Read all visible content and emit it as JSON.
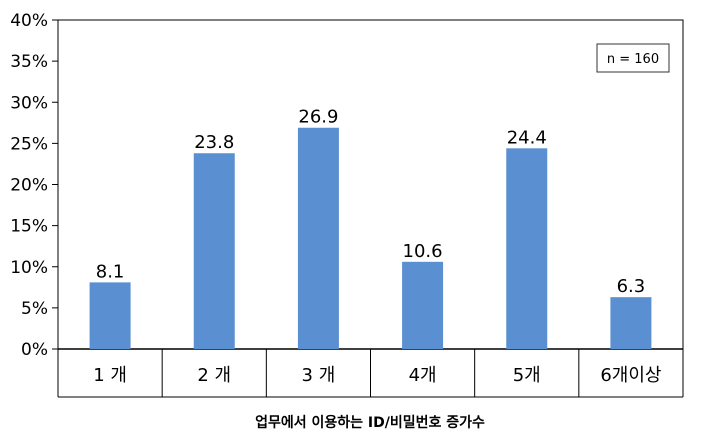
{
  "chart_data": {
    "type": "bar",
    "categories": [
      "1 개",
      "2 개",
      "3 개",
      "4개",
      "5개",
      "6개이상"
    ],
    "values": [
      8.1,
      23.8,
      26.9,
      10.6,
      24.4,
      6.3
    ],
    "value_labels": [
      "8.1",
      "23.8",
      "26.9",
      "10.6",
      "24.4",
      "6.3"
    ],
    "y_ticks": [
      "0%",
      "5%",
      "10%",
      "15%",
      "20%",
      "25%",
      "30%",
      "35%",
      "40%"
    ],
    "ylim": [
      0,
      40
    ],
    "xlabel": "업무에서 이용하는 ID/비밀번호 증가수",
    "ylabel": "",
    "title": "",
    "annotation": "n = 160",
    "bar_color": "#5a8fd1",
    "grid": false,
    "legend": "none"
  }
}
